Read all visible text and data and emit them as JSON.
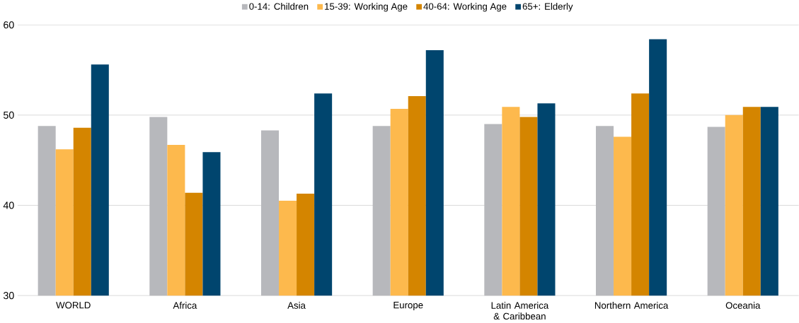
{
  "chart_data": {
    "type": "bar",
    "categories": [
      "WORLD",
      "Africa",
      "Asia",
      "Europe",
      "Latin America & Caribbean",
      "Northern America",
      "Oceania"
    ],
    "series": [
      {
        "name": "0-14: Children",
        "color": "#b7b8bc",
        "values": [
          48.8,
          49.8,
          48.3,
          48.8,
          49.0,
          48.8,
          48.7
        ]
      },
      {
        "name": "15-39: Working Age",
        "color": "#fdb94d",
        "values": [
          46.2,
          46.7,
          40.5,
          50.7,
          50.9,
          47.6,
          50.0
        ]
      },
      {
        "name": "40-64: Working Age",
        "color": "#d48500",
        "values": [
          48.6,
          41.4,
          41.3,
          52.1,
          49.8,
          52.4,
          50.9
        ]
      },
      {
        "name": "65+: Elderly",
        "color": "#00456e",
        "values": [
          55.6,
          45.9,
          52.4,
          57.2,
          51.3,
          58.4,
          50.9
        ]
      }
    ],
    "ylim": [
      30,
      60
    ],
    "yticks": [
      30,
      40,
      50,
      60
    ],
    "grid": "y",
    "legend": "top"
  }
}
